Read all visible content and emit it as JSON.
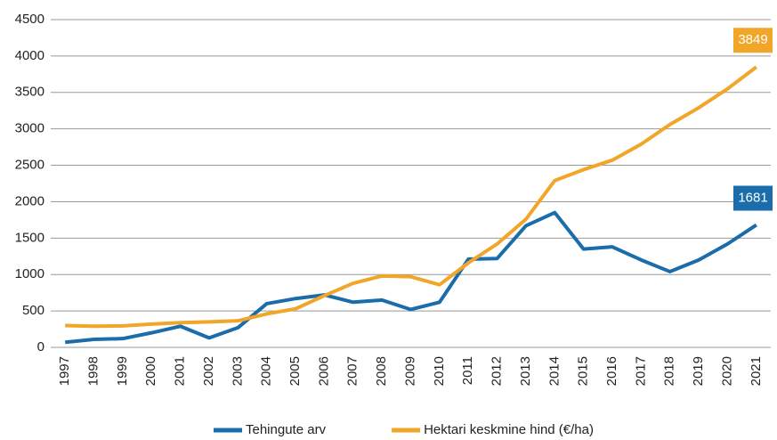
{
  "chart_data": {
    "type": "line",
    "categories": [
      "1997",
      "1998",
      "1999",
      "2000",
      "2001",
      "2002",
      "2003",
      "2004",
      "2005",
      "2006",
      "2007",
      "2008",
      "2009",
      "2010",
      "2011",
      "2012",
      "2013",
      "2014",
      "2015",
      "2016",
      "2017",
      "2018",
      "2019",
      "2020",
      "2021"
    ],
    "series": [
      {
        "name": "Tehingute arv",
        "color": "#1b6cab",
        "values": [
          70,
          110,
          120,
          200,
          290,
          130,
          270,
          600,
          670,
          720,
          620,
          650,
          520,
          620,
          1210,
          1220,
          1670,
          1850,
          1350,
          1380,
          1200,
          1040,
          1200,
          1420,
          1681
        ]
      },
      {
        "name": "Hektari keskmine hind (€/ha)",
        "color": "#f2a629",
        "values": [
          300,
          290,
          295,
          320,
          340,
          350,
          365,
          460,
          530,
          710,
          880,
          980,
          970,
          860,
          1160,
          1420,
          1760,
          2290,
          2440,
          2570,
          2790,
          3060,
          3290,
          3550,
          3849
        ]
      }
    ],
    "ylim": [
      0,
      4500
    ],
    "yticks": [
      0,
      500,
      1000,
      1500,
      2000,
      2500,
      3000,
      3500,
      4000,
      4500
    ],
    "grid": true,
    "legend": "bottom"
  }
}
